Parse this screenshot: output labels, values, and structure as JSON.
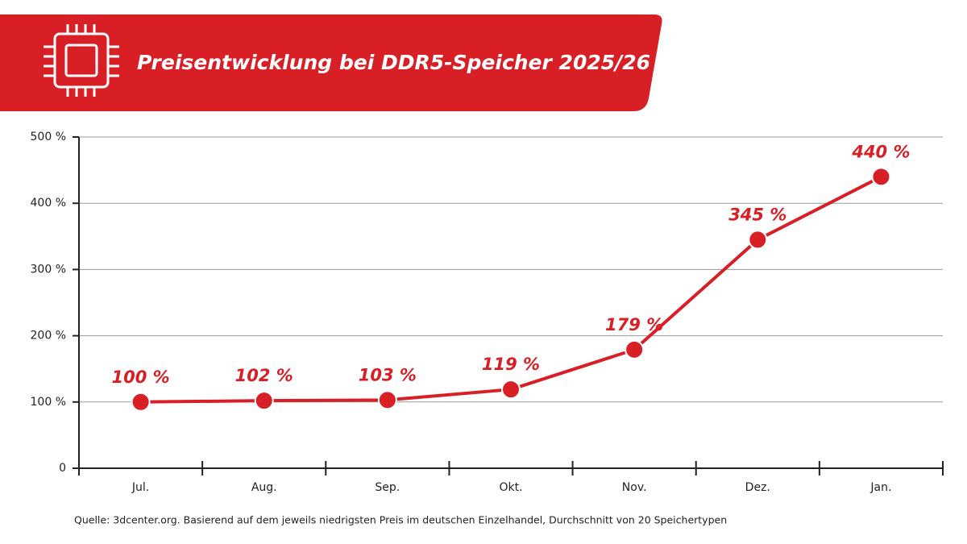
{
  "chart_data": {
    "type": "line",
    "title": "Preisentwicklung bei DDR5-Speicher 2025/26",
    "categories": [
      "Jul.",
      "Aug.",
      "Sep.",
      "Okt.",
      "Nov.",
      "Dez.",
      "Jan."
    ],
    "values": [
      100,
      102,
      103,
      119,
      179,
      345,
      440
    ],
    "value_labels": [
      "100 %",
      "102 %",
      "103 %",
      "119 %",
      "179 %",
      "345 %",
      "440 %"
    ],
    "color": "#d91f26",
    "ylim": [
      0,
      500
    ],
    "yticks": [
      0,
      {
        "value": 100,
        "label": "100 %"
      },
      {
        "value": 200,
        "label": "200 %"
      },
      {
        "value": 300,
        "label": "300 %"
      },
      {
        "value": 400,
        "label": "400 %"
      },
      {
        "value": 500,
        "label": "500 %"
      }
    ],
    "grid": true,
    "source": "Quelle: 3dcenter.org.  Basierend auf dem jeweils niedrigsten Preis im deutschen Einzelhandel, Durchschnitt von 20 Speichertypen"
  }
}
